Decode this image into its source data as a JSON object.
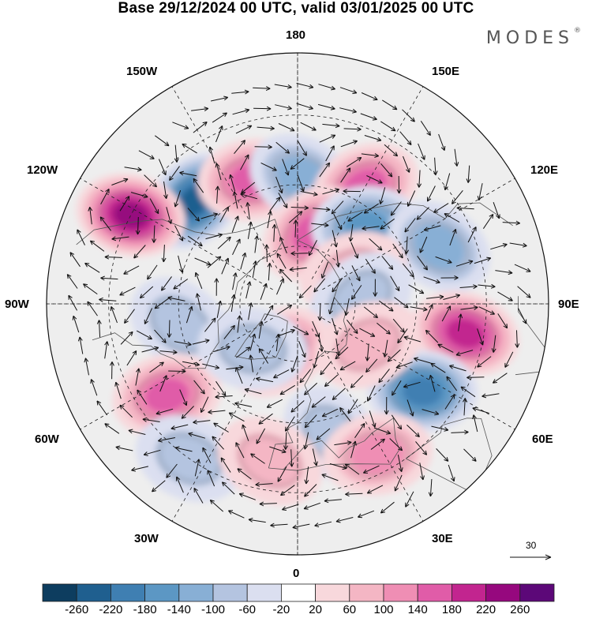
{
  "header": {
    "title": "Base 29/12/2024 00 UTC, valid 03/01/2025 00 UTC",
    "brand": "MODES",
    "brand_mark": "®"
  },
  "map": {
    "projection": "north-polar-stereographic",
    "longitude_labels": {
      "top": "180",
      "bottom": "0",
      "left": "90W",
      "right": "90E",
      "upper_left_1": "150W",
      "upper_left_2": "120W",
      "upper_right_1": "150E",
      "upper_right_2": "120E",
      "lower_left_1": "60W",
      "lower_left_2": "30W",
      "lower_right_1": "60E",
      "lower_right_2": "30E"
    },
    "reference_vector_label": "30",
    "anomaly_centres": [
      {
        "lon_deg": -135,
        "lat_deg": 42,
        "sign": "negative",
        "value": -240
      },
      {
        "lon_deg": -160,
        "lat_deg": 46,
        "sign": "positive",
        "value": 160
      },
      {
        "lon_deg": 178,
        "lat_deg": 48,
        "sign": "negative",
        "value": -120
      },
      {
        "lon_deg": 150,
        "lat_deg": 45,
        "sign": "positive",
        "value": 140
      },
      {
        "lon_deg": -118,
        "lat_deg": 30,
        "sign": "positive",
        "value": 240
      },
      {
        "lon_deg": 168,
        "lat_deg": 65,
        "sign": "positive",
        "value": 150
      },
      {
        "lon_deg": 138,
        "lat_deg": 55,
        "sign": "negative",
        "value": -140
      },
      {
        "lon_deg": 112,
        "lat_deg": 40,
        "sign": "negative",
        "value": -110
      },
      {
        "lon_deg": 118,
        "lat_deg": 68,
        "sign": "positive",
        "value": 80
      },
      {
        "lon_deg": 80,
        "lat_deg": 35,
        "sign": "positive",
        "value": 190
      },
      {
        "lon_deg": 95,
        "lat_deg": 68,
        "sign": "negative",
        "value": -80
      },
      {
        "lon_deg": 55,
        "lat_deg": 40,
        "sign": "negative",
        "value": -210
      },
      {
        "lon_deg": -80,
        "lat_deg": 50,
        "sign": "negative",
        "value": -90
      },
      {
        "lon_deg": -55,
        "lat_deg": 38,
        "sign": "positive",
        "value": 170
      },
      {
        "lon_deg": -35,
        "lat_deg": 30,
        "sign": "negative",
        "value": -90
      },
      {
        "lon_deg": -22,
        "lat_deg": 72,
        "sign": "positive",
        "value": 140
      },
      {
        "lon_deg": -45,
        "lat_deg": 68,
        "sign": "negative",
        "value": -60
      },
      {
        "lon_deg": 15,
        "lat_deg": 45,
        "sign": "negative",
        "value": -90
      },
      {
        "lon_deg": 28,
        "lat_deg": 35,
        "sign": "positive",
        "value": 130
      },
      {
        "lon_deg": -10,
        "lat_deg": 38,
        "sign": "positive",
        "value": 80
      },
      {
        "lon_deg": 60,
        "lat_deg": 62,
        "sign": "positive",
        "value": 80
      }
    ]
  },
  "colorbar": {
    "ticks": [
      "-260",
      "-220",
      "-180",
      "-140",
      "-100",
      "-60",
      "-20",
      "20",
      "60",
      "100",
      "140",
      "180",
      "220",
      "260"
    ],
    "colors": [
      "#0d3d5f",
      "#1f5f8f",
      "#3f7fb2",
      "#5c97c4",
      "#88afd5",
      "#b4c4e0",
      "#dbdff0",
      "#ffffff",
      "#f8d8dc",
      "#f4b6c4",
      "#ef8eb4",
      "#e05ca8",
      "#c2258f",
      "#96087e",
      "#5c0878"
    ]
  }
}
